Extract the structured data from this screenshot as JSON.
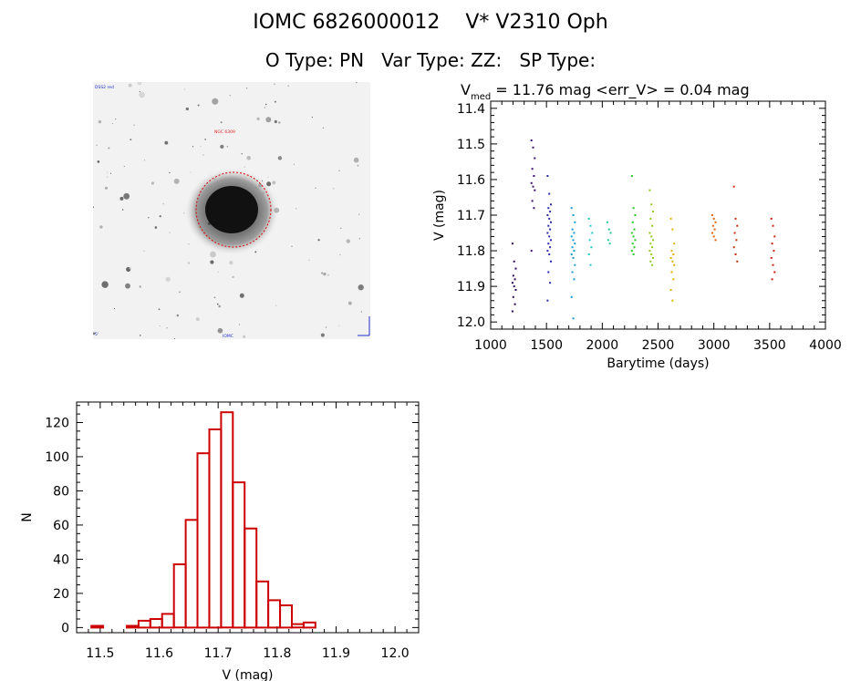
{
  "header": {
    "line1": "IOMC 6826000012    V* V2310 Oph",
    "line2": "O Type: PN   Var Type: ZZ:   SP Type:"
  },
  "image_panel": {
    "alt": "Sky field image of planetary nebula",
    "labels": {
      "top_left": "DSS2 red",
      "center": "NGC 6309",
      "bottom_center": "IOMC",
      "bottom_left": "5'"
    }
  },
  "colors": {
    "hist": "#cc0000",
    "axis": "#000000",
    "circle": "#dd0000"
  },
  "chart_data": [
    {
      "id": "lightcurve",
      "type": "scatter",
      "title_main": "V",
      "title_sub": "med",
      "title_rest": " = 11.76 mag <err_V> = 0.04 mag",
      "xlabel": "Barytime (days)",
      "ylabel": "V (mag)",
      "xlim": [
        1000,
        4000
      ],
      "ylim": [
        12.02,
        11.38
      ],
      "xticks": [
        1000,
        1500,
        2000,
        2500,
        3000,
        3500,
        4000
      ],
      "xticklabels": [
        "1000",
        "1500",
        "2000",
        "2500",
        "3000",
        "3500",
        "4000"
      ],
      "yticks": [
        11.4,
        11.5,
        11.6,
        11.7,
        11.8,
        11.9,
        12.0
      ],
      "yticklabels": [
        "11.4",
        "11.5",
        "11.6",
        "11.7",
        "11.8",
        "11.9",
        "12.0"
      ],
      "groups": [
        {
          "x": 1210,
          "color": "#2a0a55",
          "points": [
            11.78,
            11.83,
            11.85,
            11.87,
            11.88,
            11.89,
            11.9,
            11.91,
            11.93,
            11.95,
            11.97
          ]
        },
        {
          "x": 1380,
          "color": "#3f1070",
          "points": [
            11.49,
            11.51,
            11.54,
            11.57,
            11.59,
            11.61,
            11.62,
            11.63,
            11.66,
            11.68,
            11.8
          ]
        },
        {
          "x": 1525,
          "color": "#2a2aaa",
          "points": [
            11.59,
            11.64,
            11.67,
            11.68,
            11.69,
            11.7,
            11.71,
            11.72,
            11.73,
            11.74,
            11.75,
            11.76,
            11.77,
            11.78,
            11.79,
            11.8,
            11.81,
            11.83,
            11.86,
            11.89,
            11.94
          ]
        },
        {
          "x": 1740,
          "color": "#1a9ad0",
          "points": [
            11.68,
            11.7,
            11.72,
            11.74,
            11.75,
            11.76,
            11.77,
            11.78,
            11.79,
            11.8,
            11.81,
            11.82,
            11.84,
            11.86,
            11.88,
            11.93,
            11.99
          ]
        },
        {
          "x": 1895,
          "color": "#20c8c8",
          "points": [
            11.71,
            11.73,
            11.75,
            11.77,
            11.79,
            11.81,
            11.84
          ]
        },
        {
          "x": 2060,
          "color": "#20c890",
          "points": [
            11.72,
            11.74,
            11.75,
            11.77,
            11.78
          ]
        },
        {
          "x": 2280,
          "color": "#28c828",
          "points": [
            11.59,
            11.68,
            11.7,
            11.72,
            11.74,
            11.75,
            11.76,
            11.77,
            11.78,
            11.79,
            11.8,
            11.81
          ]
        },
        {
          "x": 2440,
          "color": "#90c820",
          "points": [
            11.63,
            11.67,
            11.69,
            11.71,
            11.73,
            11.75,
            11.76,
            11.77,
            11.78,
            11.79,
            11.8,
            11.81,
            11.82,
            11.83,
            11.84
          ]
        },
        {
          "x": 2630,
          "color": "#e0b000",
          "points": [
            11.71,
            11.74,
            11.78,
            11.8,
            11.81,
            11.82,
            11.83,
            11.84,
            11.86,
            11.88,
            11.91,
            11.94
          ]
        },
        {
          "x": 3000,
          "color": "#e06010",
          "points": [
            11.7,
            11.71,
            11.72,
            11.73,
            11.74,
            11.75,
            11.76,
            11.77
          ]
        },
        {
          "x": 3195,
          "color": "#c83010",
          "points": [
            11.62,
            11.71,
            11.73,
            11.75,
            11.77,
            11.79,
            11.81,
            11.83
          ]
        },
        {
          "x": 3530,
          "color": "#c82010",
          "points": [
            11.71,
            11.73,
            11.76,
            11.78,
            11.8,
            11.82,
            11.84,
            11.86,
            11.88
          ]
        }
      ]
    },
    {
      "id": "histogram",
      "type": "bar",
      "xlabel": "V (mag)",
      "ylabel": "N",
      "xlim": [
        11.46,
        12.04
      ],
      "ylim": [
        -3,
        132
      ],
      "xticks": [
        11.5,
        11.6,
        11.7,
        11.8,
        11.9,
        12.0
      ],
      "xticklabels": [
        "11.5",
        "11.6",
        "11.7",
        "11.8",
        "11.9",
        "12.0"
      ],
      "yticks": [
        0,
        20,
        40,
        60,
        80,
        100,
        120
      ],
      "yticklabels": [
        "0",
        "20",
        "40",
        "60",
        "80",
        "100",
        "120"
      ],
      "bin_start": 11.485,
      "bin_width": 0.02,
      "counts": [
        1,
        0,
        0,
        1,
        4,
        5,
        8,
        37,
        63,
        102,
        116,
        126,
        85,
        58,
        27,
        16,
        13,
        2,
        3,
        0,
        0
      ]
    }
  ]
}
